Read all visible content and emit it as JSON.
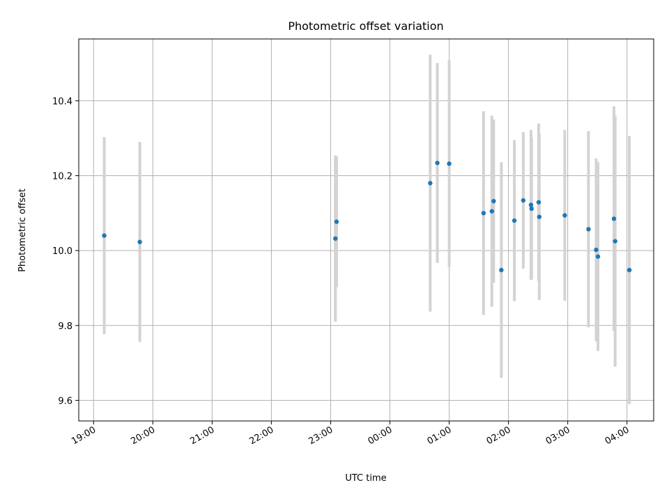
{
  "chart_data": {
    "type": "scatter",
    "title": "Photometric offset variation",
    "xlabel": "UTC time",
    "ylabel": "Photometric offset",
    "x_tick_labels": [
      "19:00",
      "20:00",
      "21:00",
      "22:00",
      "23:00",
      "00:00",
      "01:00",
      "02:00",
      "03:00",
      "04:00"
    ],
    "x_tick_hours": [
      -5,
      -4,
      -3,
      -2,
      -1,
      0,
      1,
      2,
      3,
      4
    ],
    "xlim_hours": [
      -5.25,
      4.45
    ],
    "y_ticks": [
      9.6,
      9.8,
      10.0,
      10.2,
      10.4
    ],
    "ylim": [
      9.545,
      10.565
    ],
    "grid": true,
    "colors": {
      "point": "#1f77b4",
      "errorbar": "#d3d3d3",
      "grid": "#b0b0b0"
    },
    "points": [
      {
        "hour": -4.82,
        "value": 10.04,
        "err": 0.263
      },
      {
        "hour": -4.22,
        "value": 10.023,
        "err": 0.267
      },
      {
        "hour": -0.92,
        "value": 10.032,
        "err": 0.222
      },
      {
        "hour": -0.9,
        "value": 10.077,
        "err": 0.175
      },
      {
        "hour": 0.68,
        "value": 10.18,
        "err": 0.343
      },
      {
        "hour": 0.8,
        "value": 10.234,
        "err": 0.267
      },
      {
        "hour": 1.0,
        "value": 10.232,
        "err": 0.276
      },
      {
        "hour": 1.58,
        "value": 10.1,
        "err": 0.272
      },
      {
        "hour": 1.72,
        "value": 10.105,
        "err": 0.255
      },
      {
        "hour": 1.75,
        "value": 10.132,
        "err": 0.218
      },
      {
        "hour": 1.88,
        "value": 9.948,
        "err": 0.288
      },
      {
        "hour": 2.1,
        "value": 10.08,
        "err": 0.215
      },
      {
        "hour": 2.25,
        "value": 10.134,
        "err": 0.182
      },
      {
        "hour": 2.38,
        "value": 10.122,
        "err": 0.2
      },
      {
        "hour": 2.39,
        "value": 10.112,
        "err": 0.19
      },
      {
        "hour": 2.51,
        "value": 10.129,
        "err": 0.21
      },
      {
        "hour": 2.52,
        "value": 10.09,
        "err": 0.222
      },
      {
        "hour": 2.95,
        "value": 10.094,
        "err": 0.228
      },
      {
        "hour": 3.35,
        "value": 10.057,
        "err": 0.262
      },
      {
        "hour": 3.48,
        "value": 10.002,
        "err": 0.244
      },
      {
        "hour": 3.51,
        "value": 9.984,
        "err": 0.252
      },
      {
        "hour": 3.78,
        "value": 10.085,
        "err": 0.3
      },
      {
        "hour": 3.8,
        "value": 10.025,
        "err": 0.335
      },
      {
        "hour": 4.04,
        "value": 9.948,
        "err": 0.358
      }
    ]
  }
}
